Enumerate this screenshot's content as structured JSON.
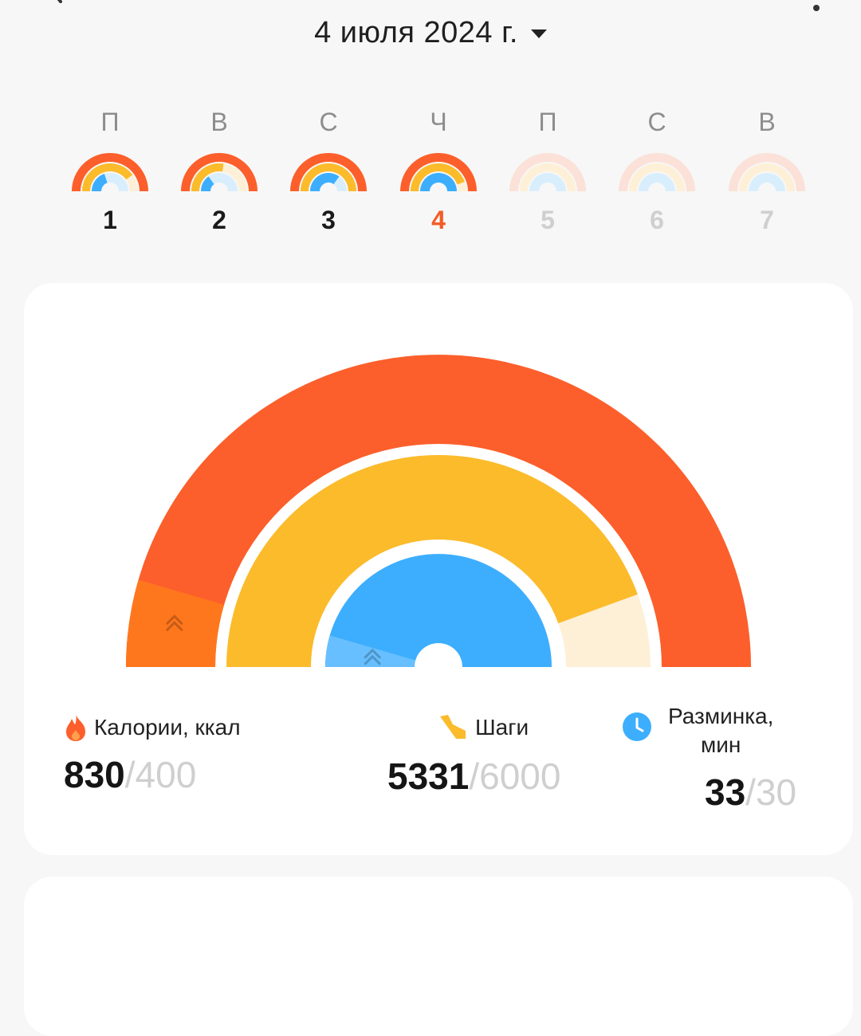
{
  "header": {
    "date": "4 июля 2024 г."
  },
  "week": [
    {
      "letter": "П",
      "number": "1",
      "state": "past",
      "cal": 1.0,
      "steps": 0.8,
      "warm": 0.4
    },
    {
      "letter": "В",
      "number": "2",
      "state": "past",
      "cal": 1.0,
      "steps": 0.55,
      "warm": 0.3
    },
    {
      "letter": "С",
      "number": "3",
      "state": "past",
      "cal": 1.0,
      "steps": 1.0,
      "warm": 0.7
    },
    {
      "letter": "Ч",
      "number": "4",
      "state": "today",
      "cal": 1.0,
      "steps": 0.89,
      "warm": 1.0
    },
    {
      "letter": "П",
      "number": "5",
      "state": "future",
      "cal": 0,
      "steps": 0,
      "warm": 0
    },
    {
      "letter": "С",
      "number": "6",
      "state": "future",
      "cal": 0,
      "steps": 0,
      "warm": 0
    },
    {
      "letter": "В",
      "number": "7",
      "state": "future",
      "cal": 0,
      "steps": 0,
      "warm": 0
    }
  ],
  "metrics": {
    "calories": {
      "label": "Калории, ккал",
      "value": "830",
      "goal": "/400",
      "progress": 2.075,
      "icon": "flame-icon"
    },
    "steps": {
      "label": "Шаги",
      "value": "5331",
      "goal": "/6000",
      "progress": 0.8885,
      "icon": "shoe-icon"
    },
    "warmup": {
      "label_line1": "Разминка,",
      "label_line2": "мин",
      "value": "33",
      "goal": "/30",
      "progress": 1.1,
      "icon": "clock-icon"
    }
  },
  "colors": {
    "calories": "#fc5f2b",
    "calories_over": "#ff7a1c",
    "calories_track": "#fbe1d8",
    "steps": "#fbbb2b",
    "steps_track": "#fdf0d6",
    "warmup": "#3daefe",
    "warmup_over": "#6cc1ff",
    "warmup_track": "#d9eefc"
  }
}
